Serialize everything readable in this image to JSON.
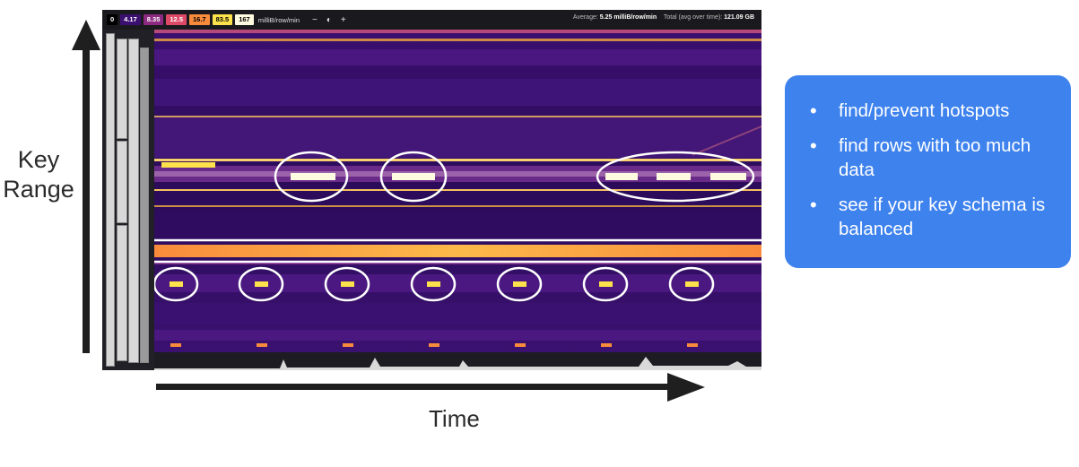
{
  "labels": {
    "key_range": "Key Range",
    "time": "Time"
  },
  "toolbar": {
    "legend": [
      {
        "label": "0",
        "bg": "#000000",
        "fg": "#ffffff"
      },
      {
        "label": "4.17",
        "bg": "#3b0f70",
        "fg": "#ffffff"
      },
      {
        "label": "8.35",
        "bg": "#8c2981",
        "fg": "#ffffff"
      },
      {
        "label": "12.5",
        "bg": "#de4968",
        "fg": "#ffffff"
      },
      {
        "label": "16.7",
        "bg": "#f98c3c",
        "fg": "#000000"
      },
      {
        "label": "83.5",
        "bg": "#fde24b",
        "fg": "#000000"
      },
      {
        "label": "167",
        "bg": "#fffbe0",
        "fg": "#000000"
      }
    ],
    "unit": "milliB/row/min",
    "zoom_out": "−",
    "contrast": "◐",
    "zoom_in": "+",
    "average_label": "Average:",
    "average_value": "5.25 milliB/row/min",
    "total_label": "Total (avg over time):",
    "total_value": "121.09 GB"
  },
  "callout": {
    "items": [
      "find/prevent hotspots",
      "find rows with too much data",
      "see if your key schema is balanced"
    ]
  },
  "colors": {
    "callout_bg": "#3e82ee",
    "heatmap_base": "#2a0f5c",
    "hot": "#fde24b",
    "annotation": "#ffffff"
  }
}
